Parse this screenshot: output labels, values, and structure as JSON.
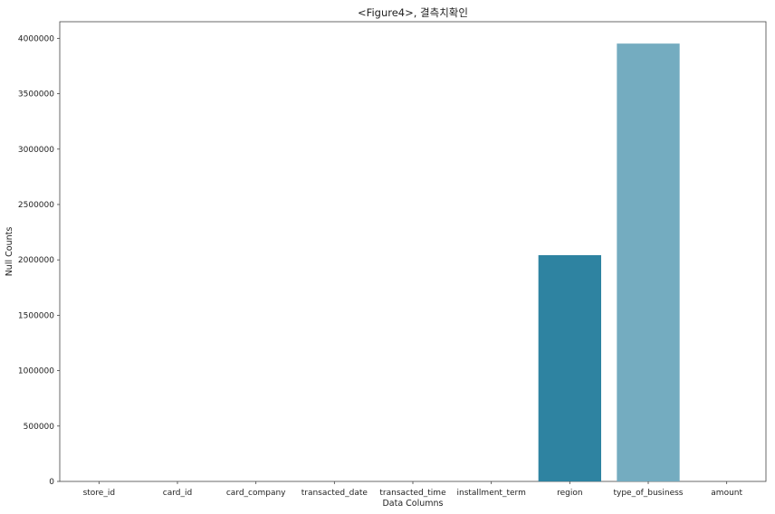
{
  "chart_data": {
    "type": "bar",
    "title": "<Figure4>, 결측치확인",
    "xlabel": "Data Columns",
    "ylabel": "Null Counts",
    "categories": [
      "store_id",
      "card_id",
      "card_company",
      "transacted_date",
      "transacted_time",
      "installment_term",
      "region",
      "type_of_business",
      "amount"
    ],
    "values": [
      0,
      0,
      0,
      0,
      0,
      0,
      2042766,
      3952609,
      0
    ],
    "colors": [
      "#2e83a1",
      "#2e83a1",
      "#2e83a1",
      "#2e83a1",
      "#2e83a1",
      "#2e83a1",
      "#2e83a1",
      "#74acc0",
      "#2e83a1"
    ],
    "ylim": [
      0,
      4150000
    ],
    "yticks": [
      0,
      500000,
      1000000,
      1500000,
      2000000,
      2500000,
      3000000,
      3500000,
      4000000
    ],
    "grid": false,
    "legend": "none"
  }
}
